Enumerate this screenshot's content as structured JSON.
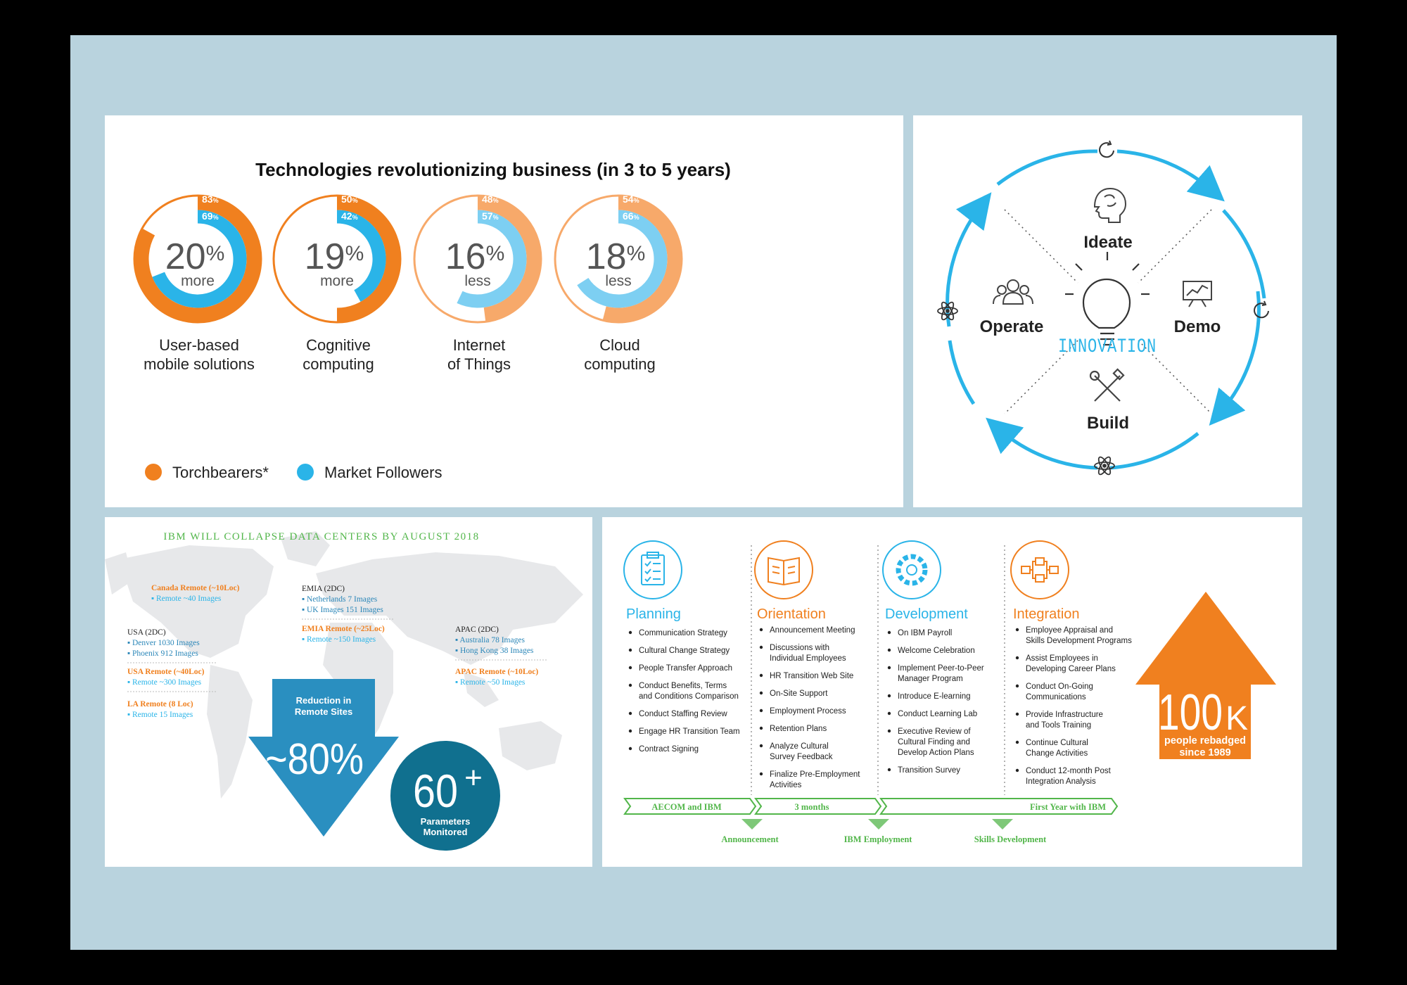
{
  "chart_data": [
    {
      "type": "donut",
      "title": "Technologies revolutionizing business (in 3 to 5 years)",
      "series_names": [
        "Torchbearers*",
        "Market Followers"
      ],
      "charts": [
        {
          "label_line1": "User-based",
          "label_line2": "mobile solutions",
          "torchbearers": 83,
          "followers": 69,
          "diff": "20",
          "diff_word": "more",
          "pct": "%"
        },
        {
          "label_line1": "Cognitive",
          "label_line2": "computing",
          "torchbearers": 50,
          "followers": 42,
          "diff": "19",
          "diff_word": "more",
          "pct": "%"
        },
        {
          "label_line1": "Internet",
          "label_line2": "of Things",
          "torchbearers": 48,
          "followers": 57,
          "diff": "16",
          "diff_word": "less",
          "pct": "%"
        },
        {
          "label_line1": "Cloud",
          "label_line2": "computing",
          "torchbearers": 54,
          "followers": 66,
          "diff": "18",
          "diff_word": "less",
          "pct": "%"
        }
      ]
    }
  ],
  "colors": {
    "orange": "#f0801f",
    "orange_light": "#f7a96a",
    "blue": "#2ab4e8",
    "blue_light": "#7dcff2",
    "green": "#52b64a",
    "teal": "#1a7fa3",
    "teal_dark": "#10708f"
  },
  "innovation": {
    "center": "INNOVATION",
    "stages": [
      "Ideate",
      "Demo",
      "Build",
      "Operate"
    ],
    "icons": [
      "brain-icon",
      "chart-board-icon",
      "tools-icon",
      "people-icon",
      "lightbulb-icon",
      "refresh-icon",
      "atom-icon"
    ]
  },
  "datacenters": {
    "title": "IBM WILL COLLAPSE DATA CENTERS BY AUGUST 2018",
    "canada": {
      "head": "Canada Remote (~10Loc)",
      "items": [
        "Remote ~40 Images"
      ]
    },
    "usa": {
      "head": "USA (2DC)",
      "items": [
        "Denver 1030 Images",
        "Phoenix 912 Images"
      ]
    },
    "usa_remote": {
      "head": "USA Remote (~40Loc)",
      "items": [
        "Remote ~300 Images"
      ]
    },
    "la_remote": {
      "head": "LA Remote (8 Loc)",
      "items": [
        "Remote 15 Images"
      ]
    },
    "emia": {
      "head": "EMIA (2DC)",
      "items": [
        "Netherlands 7 Images",
        "UK Images 151 Images"
      ]
    },
    "emia_remote": {
      "head": "EMIA Remote (~25Loc)",
      "items": [
        "Remote ~150 Images"
      ]
    },
    "apac": {
      "head": "APAC (2DC)",
      "items": [
        "Australia 78 Images",
        "Hong Kong 38 Images"
      ]
    },
    "apac_remote": {
      "head": "APAC Remote (~10Loc)",
      "items": [
        "Remote ~50 Images"
      ]
    },
    "reduction_line1": "Reduction in",
    "reduction_line2": "Remote Sites",
    "reduction_value": "~80%",
    "params_value": "60",
    "params_plus": "+",
    "params_line1": "Parameters",
    "params_line2": "Monitored"
  },
  "transition": {
    "columns": [
      {
        "title": "Planning",
        "icon": "clipboard-icon",
        "items": [
          [
            "Communication Strategy"
          ],
          [
            "Cultural Change Strategy"
          ],
          [
            "People Transfer Approach"
          ],
          [
            "Conduct Benefits, Terms",
            "and Conditions Comparison"
          ],
          [
            "Conduct Staffing Review"
          ],
          [
            "Engage HR Transition Team"
          ],
          [
            "Contract Signing"
          ]
        ]
      },
      {
        "title": "Orientation",
        "icon": "book-icon",
        "items": [
          [
            "Announcement Meeting"
          ],
          [
            "Discussions with",
            "Individual Employees"
          ],
          [
            "HR Transition Web Site"
          ],
          [
            "On-Site Support"
          ],
          [
            "Employment Process"
          ],
          [
            "Retention Plans"
          ],
          [
            "Analyze Cultural",
            "Survey Feedback"
          ],
          [
            "Finalize Pre-Employment",
            "Activities"
          ]
        ]
      },
      {
        "title": "Development",
        "icon": "gear-icon",
        "items": [
          [
            "On IBM Payroll"
          ],
          [
            "Welcome Celebration"
          ],
          [
            "Implement Peer-to-Peer",
            "Manager Program"
          ],
          [
            "Introduce E-learning"
          ],
          [
            "Conduct Learning Lab"
          ],
          [
            "Executive Review of",
            "Cultural Finding and",
            "Develop Action Plans"
          ],
          [
            "Transition Survey"
          ]
        ]
      },
      {
        "title": "Integration",
        "icon": "flowchart-icon",
        "items": [
          [
            "Employee Appraisal and",
            "Skills Development Programs"
          ],
          [
            "Assist Employees in",
            "Developing Career Plans"
          ],
          [
            "Conduct On-Going",
            "Communications"
          ],
          [
            "Provide Infrastructure",
            "and Tools Training"
          ],
          [
            "Continue Cultural",
            "Change Activities"
          ],
          [
            "Conduct 12-month Post",
            "Integration Analysis"
          ]
        ]
      }
    ],
    "timeline": [
      "AECOM and IBM",
      "3 months",
      "First Year with IBM"
    ],
    "milestones": [
      "Announcement",
      "IBM Employment",
      "Skills Development"
    ],
    "big_number": "100",
    "big_suffix": "K",
    "big_line1": "people rebadged",
    "big_line2": "since 1989"
  }
}
